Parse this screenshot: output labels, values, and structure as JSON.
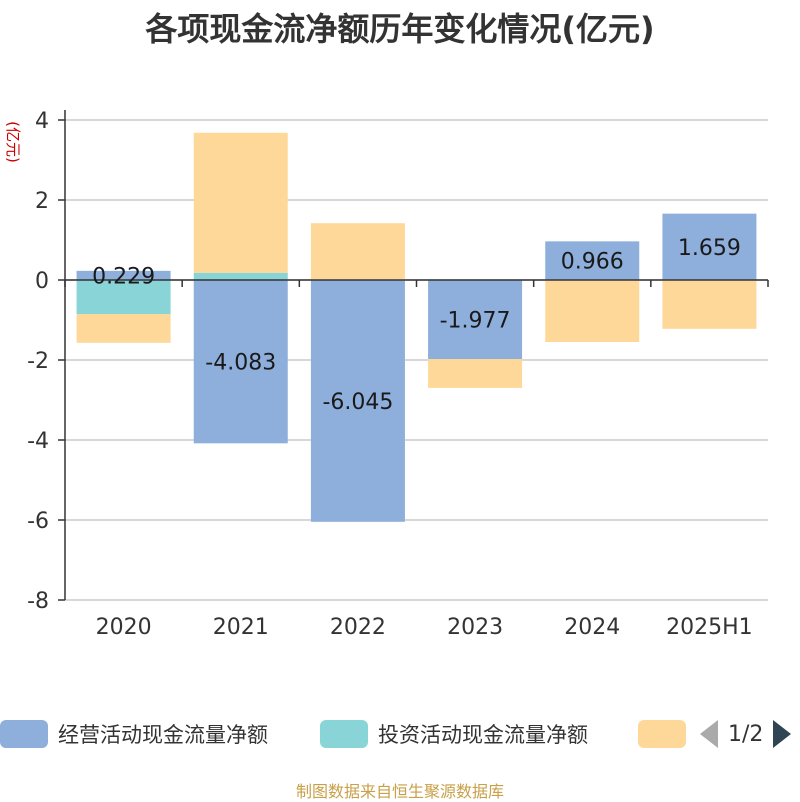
{
  "chart_data": {
    "type": "bar",
    "stacked": true,
    "title": "各项现金流净额历年变化情况(亿元)",
    "ylabel": "(亿元)",
    "xlabel": "",
    "categories": [
      "2020",
      "2021",
      "2022",
      "2023",
      "2024",
      "2025H1"
    ],
    "ylim": [
      -8,
      4
    ],
    "yticks": [
      4,
      2,
      0,
      -2,
      -4,
      -6,
      -8
    ],
    "grid": true,
    "legend_position": "bottom",
    "series": [
      {
        "name": "经营活动现金流量净额",
        "color": "#8eaedb",
        "values": [
          0.229,
          -4.083,
          -6.045,
          -1.977,
          0.966,
          1.659
        ],
        "show_labels": true
      },
      {
        "name": "投资活动现金流量净额",
        "color": "#88d4d6",
        "values": [
          -0.85,
          0.18,
          0.0,
          0.0,
          0.0,
          0.0
        ],
        "show_labels": false
      },
      {
        "name": "",
        "color": "#fdd899",
        "values": [
          -0.72,
          3.5,
          1.42,
          -0.72,
          -1.55,
          -1.22
        ],
        "show_labels": false
      }
    ]
  },
  "legend": {
    "items": [
      {
        "label": "经营活动现金流量净额",
        "color": "#8eaedb"
      },
      {
        "label": "投资活动现金流量净额",
        "color": "#88d4d6"
      },
      {
        "label": "",
        "color": "#fdd899"
      }
    ],
    "pager": "1/2"
  },
  "source": "制图数据来自恒生聚源数据库"
}
